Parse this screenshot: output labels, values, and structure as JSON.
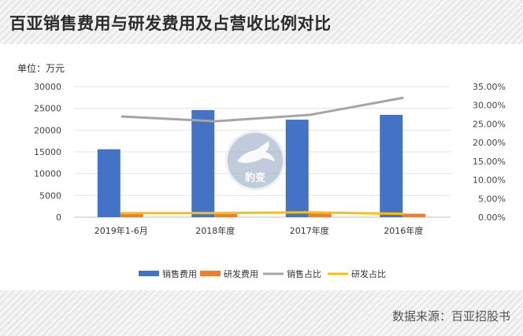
{
  "header": {
    "title": "百亚销售费用与研发费用及占营收比例对比"
  },
  "unit_label": "单位：万元",
  "source": "数据来源：百亚招股书",
  "watermark": {
    "text": "豹变",
    "icon": "leopard-logo"
  },
  "colors": {
    "sales_expense": "#4472c4",
    "rd_expense": "#ed7d31",
    "sales_ratio": "#a5a5a5",
    "rd_ratio": "#ffc000"
  },
  "chart_data": {
    "type": "bar",
    "categories": [
      "2019年1-6月",
      "2018年度",
      "2017年度",
      "2016年度"
    ],
    "y_left": {
      "lim": [
        0,
        30000
      ],
      "ticks": [
        "0",
        "5000",
        "10000",
        "15000",
        "20000",
        "25000",
        "30000"
      ],
      "values": [
        0,
        5000,
        10000,
        15000,
        20000,
        25000,
        30000
      ]
    },
    "y_right": {
      "lim": [
        0,
        35
      ],
      "ticks": [
        "0.00%",
        "5.00%",
        "10.00%",
        "15.00%",
        "20.00%",
        "25.00%",
        "30.00%",
        "35.00%"
      ],
      "values": [
        0,
        5,
        10,
        15,
        20,
        25,
        30,
        35
      ]
    },
    "series": [
      {
        "name": "销售费用",
        "kind": "bar",
        "axis": "left",
        "values": [
          15600,
          24600,
          22400,
          23500
        ]
      },
      {
        "name": "研发费用",
        "kind": "bar",
        "axis": "left",
        "values": [
          1000,
          1100,
          1200,
          800
        ]
      },
      {
        "name": "销售占比",
        "kind": "line",
        "axis": "right",
        "values": [
          27.0,
          25.7,
          27.4,
          32.0
        ]
      },
      {
        "name": "研发占比",
        "kind": "line",
        "axis": "right",
        "values": [
          1.1,
          1.1,
          1.3,
          0.9
        ]
      }
    ],
    "legend_position": "bottom",
    "grid": true
  }
}
